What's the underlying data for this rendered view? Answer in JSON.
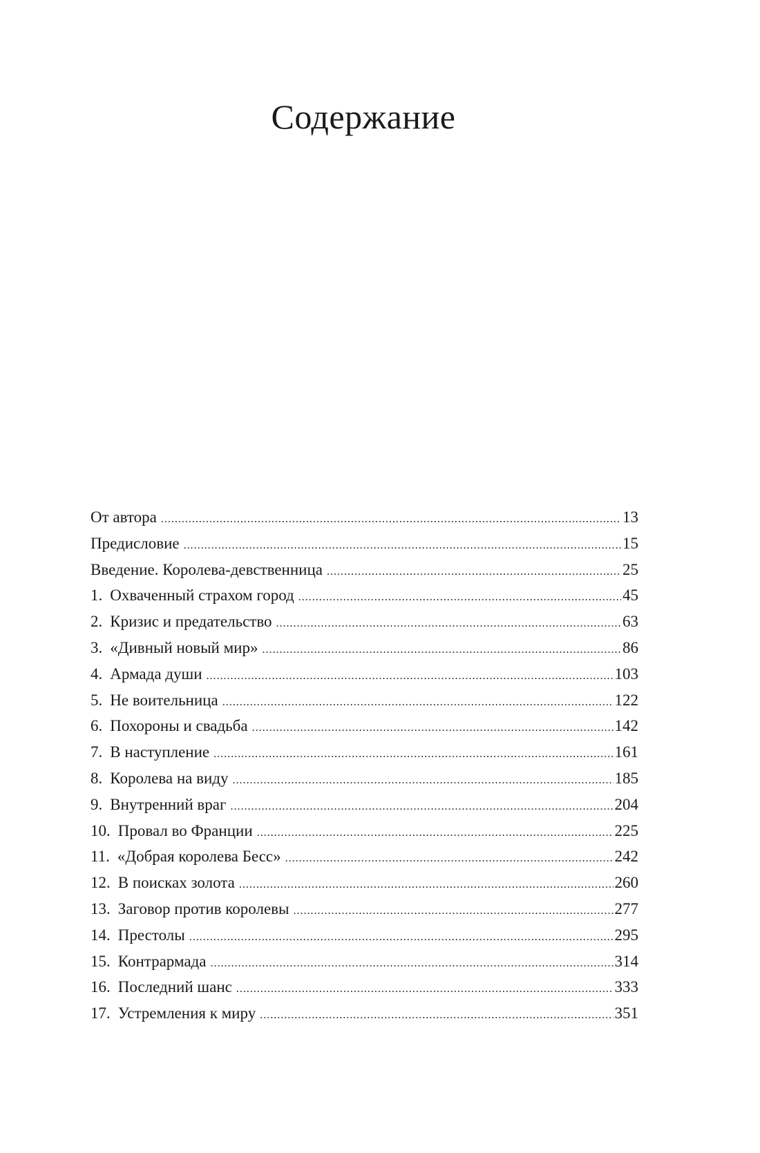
{
  "title": "Содержание",
  "entries": [
    {
      "number": "",
      "label": "От автора",
      "page": "13"
    },
    {
      "number": "",
      "label": "Предисловие",
      "page": "15"
    },
    {
      "number": "",
      "label": "Введение. Королева-девственница",
      "page": "25"
    },
    {
      "number": "1.",
      "label": "Охваченный страхом город",
      "page": "45"
    },
    {
      "number": "2.",
      "label": "Кризис и предательство",
      "page": "63"
    },
    {
      "number": "3.",
      "label": "«Дивный новый мир»",
      "page": "86"
    },
    {
      "number": "4.",
      "label": "Армада души",
      "page": "103"
    },
    {
      "number": "5.",
      "label": "Не воительница",
      "page": "122"
    },
    {
      "number": "6.",
      "label": "Похороны и свадьба",
      "page": "142"
    },
    {
      "number": "7.",
      "label": "В наступление",
      "page": "161"
    },
    {
      "number": "8.",
      "label": "Королева на виду",
      "page": "185"
    },
    {
      "number": "9.",
      "label": "Внутренний враг",
      "page": "204"
    },
    {
      "number": "10.",
      "label": "Провал во Франции",
      "page": "225"
    },
    {
      "number": "11.",
      "label": "«Добрая королева Бесс»",
      "page": "242"
    },
    {
      "number": "12.",
      "label": "В поисках золота",
      "page": "260"
    },
    {
      "number": "13.",
      "label": "Заговор против королевы",
      "page": "277"
    },
    {
      "number": "14.",
      "label": "Престолы",
      "page": "295"
    },
    {
      "number": "15.",
      "label": "Контрармада",
      "page": "314"
    },
    {
      "number": "16.",
      "label": "Последний шанс",
      "page": "333"
    },
    {
      "number": "17.",
      "label": "Устремления к миру",
      "page": "351"
    }
  ]
}
